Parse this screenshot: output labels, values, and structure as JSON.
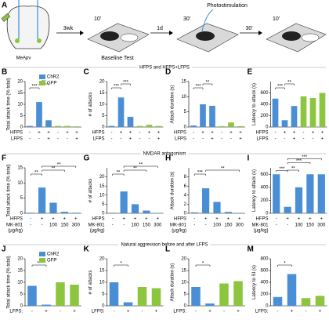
{
  "figure": {
    "panel_a": {
      "letter": "A",
      "region": "MeApv",
      "step1": "3wk",
      "box1_time": "10'",
      "box1_label": "Baseline Test",
      "step2": "1d",
      "box2_label": "Photostimulation",
      "box2_time": "30'",
      "step3": "30'",
      "box3_time": "10'"
    },
    "sections": [
      "HFPS and HFPS+LFPS",
      "NMDAR antagonism",
      "Natural aggression before and after LFPS"
    ]
  },
  "chart_data": [
    {
      "type": "bar",
      "panel": "B",
      "ylabel": "Total attack time (% total)",
      "values": [
        0.5,
        11,
        3,
        0.5,
        0.5,
        0.3
      ],
      "bar_colors": [
        "#4a8fd6",
        "#4a8fd6",
        "#4a8fd6",
        "#8cc63f",
        "#8cc63f",
        "#8cc63f"
      ],
      "ylim": [
        0,
        20
      ],
      "yticks": [
        0,
        5,
        10,
        15,
        20
      ],
      "legend": [
        {
          "name": "ChR2",
          "color": "#4a8fd6"
        },
        {
          "name": "GFP",
          "color": "#8cc63f"
        }
      ],
      "conditions": [
        {
          "name": "HFPS",
          "labels": [
            "-",
            "+",
            "+",
            "-",
            "+",
            "+"
          ]
        },
        {
          "name": "LFPS",
          "labels": [
            "-",
            "-",
            "+",
            "-",
            "-",
            "+"
          ]
        }
      ],
      "sig": [
        {
          "from": 0,
          "to": 1,
          "label": "***"
        },
        {
          "from": 1,
          "to": 2,
          "label": "**"
        }
      ]
    },
    {
      "type": "bar",
      "panel": "C",
      "ylabel": "# of attacks",
      "values": [
        0.5,
        13,
        4.5,
        0.5,
        1,
        0.5
      ],
      "bar_colors": [
        "#4a8fd6",
        "#4a8fd6",
        "#4a8fd6",
        "#8cc63f",
        "#8cc63f",
        "#8cc63f"
      ],
      "ylim": [
        0,
        20
      ],
      "yticks": [
        0,
        5,
        10,
        15,
        20
      ],
      "conditions": [
        {
          "name": "HFPS",
          "labels": [
            "-",
            "+",
            "+",
            "-",
            "+",
            "+"
          ]
        },
        {
          "name": "LFPS",
          "labels": [
            "-",
            "-",
            "+",
            "-",
            "-",
            "+"
          ]
        }
      ],
      "sig": [
        {
          "from": 0,
          "to": 1,
          "label": "***"
        },
        {
          "from": 1,
          "to": 2,
          "label": "***"
        }
      ]
    },
    {
      "type": "bar",
      "panel": "D",
      "ylabel": "Attack duration (s)",
      "values": [
        0.5,
        7.5,
        7,
        0.3,
        1.5,
        0.3
      ],
      "bar_colors": [
        "#4a8fd6",
        "#4a8fd6",
        "#4a8fd6",
        "#8cc63f",
        "#8cc63f",
        "#8cc63f"
      ],
      "ylim": [
        0,
        15
      ],
      "yticks": [
        0,
        5,
        10,
        15
      ],
      "conditions": [
        {
          "name": "HFPS",
          "labels": [
            "-",
            "+",
            "+",
            "-",
            "+",
            "+"
          ]
        },
        {
          "name": "LFPS",
          "labels": [
            "-",
            "-",
            "+",
            "-",
            "-",
            "+"
          ]
        }
      ],
      "sig": [
        {
          "from": 0,
          "to": 1,
          "label": "***"
        },
        {
          "from": 1,
          "to": 2,
          "label": "**"
        }
      ]
    },
    {
      "type": "bar",
      "panel": "E",
      "ylabel": "Latency to attack (s)",
      "values": [
        500,
        120,
        370,
        540,
        510,
        600
      ],
      "bar_colors": [
        "#4a8fd6",
        "#4a8fd6",
        "#4a8fd6",
        "#8cc63f",
        "#8cc63f",
        "#8cc63f"
      ],
      "ylim": [
        0,
        800
      ],
      "yticks": [
        0,
        200,
        400,
        600
      ],
      "conditions": [
        {
          "name": "HFPS",
          "labels": [
            "-",
            "+",
            "+",
            "-",
            "+",
            "+"
          ]
        },
        {
          "name": "LFPS",
          "labels": [
            "-",
            "-",
            "+",
            "-",
            "-",
            "+"
          ]
        }
      ],
      "sig": [
        {
          "from": 0,
          "to": 1,
          "label": "***"
        },
        {
          "from": 1,
          "to": 2,
          "label": "**"
        }
      ]
    },
    {
      "type": "bar",
      "panel": "F",
      "ylabel": "Total attack time (% total)",
      "values": [
        0.2,
        8.5,
        3.5,
        0.5,
        0.2
      ],
      "bar_colors": [
        "#4a8fd6",
        "#4a8fd6",
        "#4a8fd6",
        "#4a8fd6",
        "#4a8fd6"
      ],
      "ylim": [
        0,
        15
      ],
      "yticks": [
        0,
        5,
        10,
        15
      ],
      "conditions": [
        {
          "name": "HFPS",
          "labels": [
            "-",
            "+",
            "+",
            "+",
            "+"
          ]
        },
        {
          "name": "MK-801",
          "sub": "(μg/kg)",
          "labels": [
            "-",
            "-",
            "100",
            "150",
            "300"
          ]
        }
      ],
      "sig": [
        {
          "from": 0,
          "to": 1,
          "label": "**"
        },
        {
          "from": 1,
          "to": 3,
          "label": "**"
        },
        {
          "from": 1,
          "to": 4,
          "label": "**"
        }
      ]
    },
    {
      "type": "bar",
      "panel": "G",
      "ylabel": "# of attacks",
      "values": [
        0.3,
        12,
        5,
        1.5,
        0.2
      ],
      "bar_colors": [
        "#4a8fd6",
        "#4a8fd6",
        "#4a8fd6",
        "#4a8fd6",
        "#4a8fd6"
      ],
      "ylim": [
        0,
        25
      ],
      "yticks": [
        0,
        5,
        10,
        15,
        20
      ],
      "conditions": [
        {
          "name": "HFPS",
          "labels": [
            "-",
            "+",
            "+",
            "+",
            "+"
          ]
        },
        {
          "name": "MK-801",
          "sub": "(μg/kg)",
          "labels": [
            "-",
            "-",
            "100",
            "150",
            "300"
          ]
        }
      ],
      "sig": [
        {
          "from": 0,
          "to": 1,
          "label": "**"
        },
        {
          "from": 1,
          "to": 3,
          "label": "**"
        },
        {
          "from": 1,
          "to": 4,
          "label": "**"
        }
      ]
    },
    {
      "type": "bar",
      "panel": "H",
      "ylabel": "Attack duration (s)",
      "values": [
        0.2,
        5.5,
        2.5,
        0.3,
        0.1
      ],
      "bar_colors": [
        "#4a8fd6",
        "#4a8fd6",
        "#4a8fd6",
        "#4a8fd6",
        "#4a8fd6"
      ],
      "ylim": [
        0,
        10
      ],
      "yticks": [
        0,
        2,
        4,
        6,
        8
      ],
      "conditions": [
        {
          "name": "HFPS",
          "labels": [
            "-",
            "+",
            "+",
            "+",
            "+"
          ]
        },
        {
          "name": "MK-801",
          "sub": "(μg/kg)",
          "labels": [
            "-",
            "-",
            "100",
            "150",
            "300"
          ]
        }
      ],
      "sig": [
        {
          "from": 0,
          "to": 1,
          "label": "***"
        },
        {
          "from": 1,
          "to": 4,
          "label": "**"
        }
      ]
    },
    {
      "type": "bar",
      "panel": "I",
      "ylabel": "Latency to attack (s)",
      "values": [
        600,
        100,
        400,
        600,
        600
      ],
      "bar_colors": [
        "#4a8fd6",
        "#4a8fd6",
        "#4a8fd6",
        "#4a8fd6",
        "#4a8fd6"
      ],
      "ylim": [
        0,
        700
      ],
      "yticks": [
        0,
        200,
        400,
        600
      ],
      "conditions": [
        {
          "name": "HFPS",
          "labels": [
            "-",
            "+",
            "+",
            "+",
            "+"
          ]
        },
        {
          "name": "MK-801",
          "sub": "(μg/kg)",
          "labels": [
            "-",
            "-",
            "100",
            "150",
            "300"
          ]
        }
      ],
      "sig": [
        {
          "from": 0,
          "to": 1,
          "label": "***"
        },
        {
          "from": 1,
          "to": 2,
          "label": "**"
        },
        {
          "from": 1,
          "to": 3,
          "label": "***"
        },
        {
          "from": 1,
          "to": 4,
          "label": "***"
        }
      ]
    },
    {
      "type": "bar",
      "panel": "J",
      "ylabel": "Total attack time (% total)",
      "values": [
        8.5,
        0.5,
        10,
        9
      ],
      "bar_colors": [
        "#4a8fd6",
        "#4a8fd6",
        "#8cc63f",
        "#8cc63f"
      ],
      "ylim": [
        0,
        20
      ],
      "yticks": [
        0,
        5,
        10,
        15,
        20
      ],
      "legend": [
        {
          "name": "ChR2",
          "color": "#4a8fd6"
        },
        {
          "name": "GFP",
          "color": "#8cc63f"
        }
      ],
      "conditions": [
        {
          "name": "LFPS:",
          "labels": [
            "-",
            "+",
            "-",
            "+"
          ]
        }
      ],
      "sig": [
        {
          "from": 0,
          "to": 1,
          "label": "**"
        }
      ]
    },
    {
      "type": "bar",
      "panel": "K",
      "ylabel": "# of attacks",
      "values": [
        10,
        1.5,
        8,
        7.5
      ],
      "bar_colors": [
        "#4a8fd6",
        "#4a8fd6",
        "#8cc63f",
        "#8cc63f"
      ],
      "ylim": [
        0,
        20
      ],
      "yticks": [
        0,
        5,
        10,
        15,
        20
      ],
      "conditions": [
        {
          "name": "LFPS:",
          "labels": [
            "-",
            "+",
            "-",
            "+"
          ]
        }
      ],
      "sig": [
        {
          "from": 0,
          "to": 1,
          "label": "*"
        }
      ]
    },
    {
      "type": "bar",
      "panel": "L",
      "ylabel": "Attack duration (s)",
      "values": [
        8,
        1,
        9.5,
        10.5
      ],
      "bar_colors": [
        "#4a8fd6",
        "#4a8fd6",
        "#8cc63f",
        "#8cc63f"
      ],
      "ylim": [
        0,
        20
      ],
      "yticks": [
        0,
        5,
        10,
        15,
        20
      ],
      "conditions": [
        {
          "name": "LFPS:",
          "labels": [
            "-",
            "+",
            "-",
            "+"
          ]
        }
      ],
      "sig": [
        {
          "from": 0,
          "to": 1,
          "label": "*"
        }
      ]
    },
    {
      "type": "bar",
      "panel": "M",
      "ylabel": "Latency to SI (s)",
      "values": [
        150,
        540,
        130,
        170
      ],
      "bar_colors": [
        "#4a8fd6",
        "#4a8fd6",
        "#8cc63f",
        "#8cc63f"
      ],
      "ylim": [
        0,
        800
      ],
      "yticks": [
        0,
        200,
        400,
        600,
        800
      ],
      "conditions": [
        {
          "name": "LFPS:",
          "labels": [
            "-",
            "+",
            "-",
            "+"
          ]
        }
      ],
      "sig": [
        {
          "from": 0,
          "to": 1,
          "label": "*"
        }
      ]
    }
  ]
}
